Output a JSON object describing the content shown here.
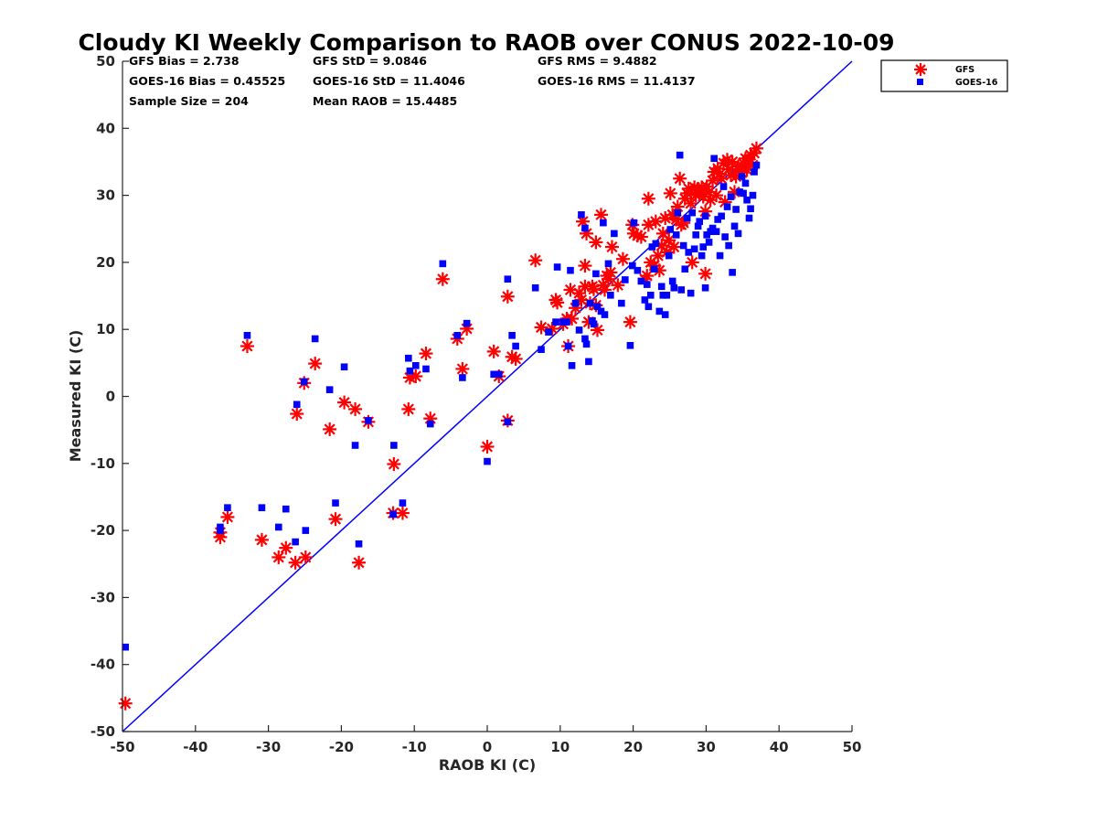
{
  "title": "Cloudy KI Weekly Comparison to RAOB over CONUS 2022-10-09",
  "stats": [
    "GFS Bias = 2.738",
    "GFS StD = 9.0846",
    "GFS RMS = 9.4882",
    "GOES-16 Bias = 0.45525",
    "GOES-16 StD = 11.4046",
    "GOES-16 RMS = 11.4137",
    "Sample Size = 204",
    "Mean RAOB = 15.4485"
  ],
  "colors": {
    "gfs": "#ff0000",
    "goes": "#0000ff",
    "reference_line": "#0000ff",
    "axes": "#262626"
  },
  "chart_data": {
    "type": "scatter",
    "xlabel": "RAOB KI (C)",
    "ylabel": "Measured KI (C)",
    "xlim": [
      -50,
      50
    ],
    "ylim": [
      -50,
      50
    ],
    "xticks": [
      -50,
      -40,
      -30,
      -20,
      -10,
      0,
      10,
      20,
      30,
      40,
      50
    ],
    "yticks": [
      -50,
      -40,
      -30,
      -20,
      -10,
      0,
      10,
      20,
      30,
      40,
      50
    ],
    "grid": false,
    "legend_position": "top-right",
    "reference_line": {
      "from": [
        -50,
        -50
      ],
      "to": [
        50,
        50
      ]
    },
    "series": [
      {
        "name": "GFS",
        "marker": "asterisk",
        "points": [
          [
            -49.6,
            -45.8
          ],
          [
            -36.6,
            -21.0
          ],
          [
            -36.6,
            -20.3
          ],
          [
            -35.6,
            -18.0
          ],
          [
            -32.9,
            7.5
          ],
          [
            -30.9,
            -21.4
          ],
          [
            -28.6,
            -24.0
          ],
          [
            -27.6,
            -22.6
          ],
          [
            -26.3,
            -24.8
          ],
          [
            -26.1,
            -2.6
          ],
          [
            -25.1,
            2.0
          ],
          [
            -24.9,
            -24.0
          ],
          [
            -23.6,
            4.9
          ],
          [
            -21.6,
            -4.9
          ],
          [
            -20.8,
            -18.3
          ],
          [
            -19.6,
            -0.9
          ],
          [
            -18.1,
            -1.9
          ],
          [
            -17.6,
            -24.8
          ],
          [
            -16.3,
            -3.8
          ],
          [
            -12.9,
            -17.4
          ],
          [
            -12.8,
            -10.1
          ],
          [
            -11.6,
            -17.4
          ],
          [
            -10.8,
            -1.9
          ],
          [
            -10.6,
            2.8
          ],
          [
            -9.8,
            3.0
          ],
          [
            -8.4,
            6.4
          ],
          [
            -7.8,
            -3.3
          ],
          [
            -6.1,
            17.5
          ],
          [
            -4.1,
            8.6
          ],
          [
            -3.4,
            4.1
          ],
          [
            -2.8,
            10.1
          ],
          [
            0.0,
            -7.5
          ],
          [
            0.9,
            6.7
          ],
          [
            1.6,
            3.0
          ],
          [
            2.8,
            -3.6
          ],
          [
            2.8,
            14.9
          ],
          [
            3.4,
            5.9
          ],
          [
            3.9,
            5.6
          ],
          [
            6.6,
            20.3
          ],
          [
            7.4,
            10.3
          ],
          [
            8.9,
            10.1
          ],
          [
            9.4,
            14.4
          ],
          [
            9.6,
            14.0
          ],
          [
            10.4,
            10.8
          ],
          [
            10.9,
            11.6
          ],
          [
            11.1,
            7.5
          ],
          [
            11.4,
            15.9
          ],
          [
            11.6,
            11.6
          ],
          [
            12.1,
            13.2
          ],
          [
            12.6,
            15.4
          ],
          [
            12.9,
            14.4
          ],
          [
            13.1,
            26.1
          ],
          [
            13.4,
            19.5
          ],
          [
            13.4,
            16.4
          ],
          [
            13.6,
            24.3
          ],
          [
            13.9,
            11.1
          ],
          [
            14.1,
            13.9
          ],
          [
            14.4,
            16.4
          ],
          [
            14.6,
            16.0
          ],
          [
            14.9,
            13.6
          ],
          [
            14.9,
            23.0
          ],
          [
            15.1,
            9.9
          ],
          [
            15.6,
            27.1
          ],
          [
            15.9,
            16.6
          ],
          [
            16.1,
            15.9
          ],
          [
            16.4,
            18.0
          ],
          [
            16.6,
            17.5
          ],
          [
            16.9,
            18.5
          ],
          [
            17.1,
            22.3
          ],
          [
            17.9,
            16.6
          ],
          [
            18.6,
            20.5
          ],
          [
            19.6,
            11.1
          ],
          [
            19.9,
            25.6
          ],
          [
            20.1,
            24.3
          ],
          [
            20.6,
            24.0
          ],
          [
            21.1,
            23.8
          ],
          [
            21.6,
            17.5
          ],
          [
            21.9,
            18.0
          ],
          [
            22.1,
            25.6
          ],
          [
            22.1,
            29.5
          ],
          [
            22.4,
            20.0
          ],
          [
            22.9,
            19.5
          ],
          [
            23.1,
            26.1
          ],
          [
            23.4,
            21.0
          ],
          [
            23.6,
            18.8
          ],
          [
            23.9,
            22.5
          ],
          [
            24.1,
            24.3
          ],
          [
            24.4,
            26.6
          ],
          [
            24.6,
            21.5
          ],
          [
            24.9,
            23.3
          ],
          [
            25.1,
            30.3
          ],
          [
            25.4,
            27.1
          ],
          [
            25.6,
            22.3
          ],
          [
            25.9,
            26.4
          ],
          [
            26.1,
            28.3
          ],
          [
            26.4,
            32.5
          ],
          [
            26.6,
            25.6
          ],
          [
            26.9,
            25.9
          ],
          [
            27.1,
            29.5
          ],
          [
            27.4,
            30.3
          ],
          [
            27.6,
            31.0
          ],
          [
            27.9,
            28.8
          ],
          [
            28.1,
            20.0
          ],
          [
            28.4,
            31.2
          ],
          [
            28.6,
            30.0
          ],
          [
            28.9,
            30.8
          ],
          [
            29.1,
            30.3
          ],
          [
            29.4,
            31.2
          ],
          [
            29.6,
            29.8
          ],
          [
            29.9,
            18.3
          ],
          [
            29.9,
            27.6
          ],
          [
            30.1,
            31.3
          ],
          [
            30.4,
            30.5
          ],
          [
            30.6,
            29.3
          ],
          [
            30.9,
            32.2
          ],
          [
            31.1,
            33.5
          ],
          [
            31.4,
            30.0
          ],
          [
            31.6,
            34.0
          ],
          [
            31.9,
            33.2
          ],
          [
            32.1,
            32.5
          ],
          [
            32.4,
            34.8
          ],
          [
            32.6,
            29.0
          ],
          [
            32.9,
            35.3
          ],
          [
            33.1,
            33.9
          ],
          [
            33.4,
            33.0
          ],
          [
            33.6,
            35.0
          ],
          [
            33.9,
            30.5
          ],
          [
            34.1,
            32.8
          ],
          [
            34.4,
            34.3
          ],
          [
            34.6,
            33.9
          ],
          [
            34.9,
            33.4
          ],
          [
            35.1,
            34.8
          ],
          [
            35.4,
            35.5
          ],
          [
            35.6,
            33.8
          ],
          [
            35.9,
            34.8
          ],
          [
            36.1,
            36.0
          ],
          [
            36.4,
            34.5
          ],
          [
            36.6,
            36.3
          ],
          [
            36.9,
            37.0
          ]
        ]
      },
      {
        "name": "GOES-16",
        "marker": "square",
        "points": [
          [
            -49.6,
            -37.4
          ],
          [
            -36.6,
            -20.0
          ],
          [
            -36.6,
            -19.5
          ],
          [
            -35.6,
            -16.6
          ],
          [
            -32.9,
            9.1
          ],
          [
            -30.9,
            -16.6
          ],
          [
            -28.6,
            -19.5
          ],
          [
            -27.6,
            -16.8
          ],
          [
            -26.3,
            -21.7
          ],
          [
            -26.1,
            -1.2
          ],
          [
            -25.1,
            2.2
          ],
          [
            -24.9,
            -20.0
          ],
          [
            -23.6,
            8.6
          ],
          [
            -21.6,
            1.0
          ],
          [
            -20.8,
            -15.9
          ],
          [
            -19.6,
            4.4
          ],
          [
            -18.1,
            -7.3
          ],
          [
            -17.6,
            -22.0
          ],
          [
            -16.3,
            -3.6
          ],
          [
            -12.9,
            -17.6
          ],
          [
            -12.8,
            -7.3
          ],
          [
            -11.6,
            -15.9
          ],
          [
            -10.8,
            5.7
          ],
          [
            -10.6,
            3.8
          ],
          [
            -9.8,
            4.6
          ],
          [
            -8.4,
            4.1
          ],
          [
            -7.8,
            -4.1
          ],
          [
            -6.1,
            19.8
          ],
          [
            -4.1,
            9.1
          ],
          [
            -3.4,
            2.8
          ],
          [
            -2.8,
            10.9
          ],
          [
            0.0,
            -9.7
          ],
          [
            0.9,
            3.3
          ],
          [
            1.6,
            3.3
          ],
          [
            2.8,
            -3.8
          ],
          [
            2.8,
            17.5
          ],
          [
            3.4,
            9.1
          ],
          [
            3.9,
            7.5
          ],
          [
            6.6,
            16.2
          ],
          [
            7.4,
            7.0
          ],
          [
            8.4,
            9.6
          ],
          [
            9.4,
            11.1
          ],
          [
            9.6,
            19.3
          ],
          [
            10.4,
            11.1
          ],
          [
            10.9,
            11.1
          ],
          [
            11.1,
            7.5
          ],
          [
            11.4,
            18.8
          ],
          [
            11.6,
            4.6
          ],
          [
            12.1,
            13.9
          ],
          [
            12.6,
            9.9
          ],
          [
            12.9,
            27.1
          ],
          [
            13.4,
            8.6
          ],
          [
            13.4,
            25.1
          ],
          [
            13.6,
            7.8
          ],
          [
            13.9,
            5.2
          ],
          [
            14.1,
            13.9
          ],
          [
            14.4,
            11.3
          ],
          [
            14.6,
            10.8
          ],
          [
            14.9,
            18.3
          ],
          [
            15.1,
            13.4
          ],
          [
            15.6,
            12.7
          ],
          [
            15.9,
            25.9
          ],
          [
            16.1,
            12.2
          ],
          [
            16.6,
            19.8
          ],
          [
            16.9,
            15.1
          ],
          [
            17.4,
            24.3
          ],
          [
            18.4,
            13.9
          ],
          [
            18.9,
            17.4
          ],
          [
            19.6,
            7.6
          ],
          [
            19.9,
            19.5
          ],
          [
            20.1,
            25.9
          ],
          [
            20.6,
            18.8
          ],
          [
            21.1,
            17.2
          ],
          [
            21.6,
            14.4
          ],
          [
            21.9,
            16.7
          ],
          [
            22.1,
            13.4
          ],
          [
            22.4,
            15.1
          ],
          [
            22.6,
            22.3
          ],
          [
            22.9,
            19.0
          ],
          [
            23.1,
            22.8
          ],
          [
            23.6,
            12.7
          ],
          [
            23.9,
            16.4
          ],
          [
            24.1,
            15.1
          ],
          [
            24.4,
            12.2
          ],
          [
            24.6,
            15.1
          ],
          [
            24.9,
            21.0
          ],
          [
            25.1,
            24.9
          ],
          [
            25.4,
            17.2
          ],
          [
            25.6,
            16.2
          ],
          [
            25.9,
            24.1
          ],
          [
            26.1,
            27.4
          ],
          [
            26.4,
            36.0
          ],
          [
            26.6,
            15.9
          ],
          [
            26.9,
            22.5
          ],
          [
            27.1,
            19.0
          ],
          [
            27.4,
            26.6
          ],
          [
            27.6,
            21.5
          ],
          [
            27.9,
            15.4
          ],
          [
            28.1,
            27.4
          ],
          [
            28.4,
            22.0
          ],
          [
            28.6,
            24.1
          ],
          [
            28.9,
            25.4
          ],
          [
            29.1,
            26.1
          ],
          [
            29.4,
            21.0
          ],
          [
            29.6,
            22.3
          ],
          [
            29.9,
            16.2
          ],
          [
            29.9,
            26.9
          ],
          [
            30.1,
            24.1
          ],
          [
            30.4,
            23.0
          ],
          [
            30.6,
            24.6
          ],
          [
            30.9,
            25.1
          ],
          [
            31.1,
            35.5
          ],
          [
            31.4,
            24.6
          ],
          [
            31.6,
            26.4
          ],
          [
            31.9,
            21.0
          ],
          [
            32.1,
            26.9
          ],
          [
            32.4,
            31.3
          ],
          [
            32.6,
            23.8
          ],
          [
            32.9,
            28.3
          ],
          [
            33.1,
            22.5
          ],
          [
            33.4,
            29.8
          ],
          [
            33.6,
            18.5
          ],
          [
            33.9,
            25.4
          ],
          [
            34.1,
            27.9
          ],
          [
            34.4,
            24.3
          ],
          [
            34.6,
            30.5
          ],
          [
            34.9,
            32.8
          ],
          [
            35.1,
            30.3
          ],
          [
            35.4,
            31.8
          ],
          [
            35.6,
            29.3
          ],
          [
            35.9,
            26.6
          ],
          [
            36.1,
            28.0
          ],
          [
            36.4,
            30.0
          ],
          [
            36.6,
            33.5
          ],
          [
            36.9,
            34.5
          ]
        ]
      }
    ]
  }
}
